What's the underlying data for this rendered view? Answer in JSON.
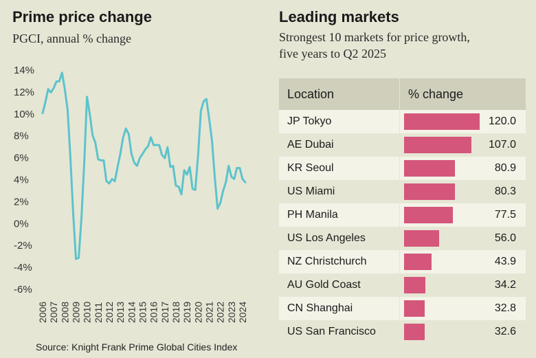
{
  "left_panel": {
    "title": "Prime price change",
    "subtitle": "PGCI, annual % change",
    "source": "Source: Knight Frank Prime Global Cities Index"
  },
  "right_panel": {
    "title": "Leading markets",
    "subtitle_line1": "Strongest 10 markets for price growth,",
    "subtitle_line2": "five years to Q2 2025",
    "header_location": "Location",
    "header_change": "% change",
    "rows": [
      {
        "location": "JP Tokyo",
        "change": "120.0"
      },
      {
        "location": "AE Dubai",
        "change": "107.0"
      },
      {
        "location": "KR Seoul",
        "change": "80.9"
      },
      {
        "location": "US Miami",
        "change": "80.3"
      },
      {
        "location": "PH Manila",
        "change": "77.5"
      },
      {
        "location": "US Los Angeles",
        "change": "56.0"
      },
      {
        "location": "NZ Christchurch",
        "change": "43.9"
      },
      {
        "location": "AU Gold Coast",
        "change": "34.2"
      },
      {
        "location": "CN Shanghai",
        "change": "32.8"
      },
      {
        "location": "US San Francisco",
        "change": "32.6"
      }
    ]
  },
  "colors": {
    "background": "#e6e6d5",
    "line": "#5cc3cb",
    "bar": "#d4567b",
    "grid": "#c9c9b6"
  },
  "chart_data": [
    {
      "type": "line",
      "title": "Prime price change",
      "subtitle": "PGCI, annual % change",
      "xlabel": "",
      "ylabel": "",
      "ylim": [
        -6,
        14
      ],
      "xlim": [
        2006,
        2024.5
      ],
      "yticks": [
        -6,
        -4,
        -2,
        0,
        2,
        4,
        6,
        8,
        10,
        12,
        14
      ],
      "ytick_labels": [
        "-6%",
        "-4%",
        "-2%",
        "0%",
        "2%",
        "4%",
        "6%",
        "8%",
        "10%",
        "12%",
        "14%"
      ],
      "xtick_labels": [
        "2006",
        "2007",
        "2008",
        "2009",
        "2010",
        "2011",
        "2012",
        "2013",
        "2014",
        "2015",
        "2016",
        "2017",
        "2018",
        "2019",
        "2020",
        "2021",
        "2022",
        "2023",
        "2024"
      ],
      "grid": false,
      "series": [
        {
          "name": "PGCI annual % change",
          "x": [
            2006.0,
            2006.25,
            2006.5,
            2006.75,
            2007.0,
            2007.25,
            2007.5,
            2007.75,
            2008.0,
            2008.25,
            2008.5,
            2008.75,
            2009.0,
            2009.25,
            2009.5,
            2009.75,
            2010.0,
            2010.25,
            2010.5,
            2010.75,
            2011.0,
            2011.25,
            2011.5,
            2011.75,
            2012.0,
            2012.25,
            2012.5,
            2012.75,
            2013.0,
            2013.25,
            2013.5,
            2013.75,
            2014.0,
            2014.25,
            2014.5,
            2014.75,
            2015.0,
            2015.25,
            2015.5,
            2015.75,
            2016.0,
            2016.25,
            2016.5,
            2016.75,
            2017.0,
            2017.25,
            2017.5,
            2017.75,
            2018.0,
            2018.25,
            2018.5,
            2018.75,
            2019.0,
            2019.25,
            2019.5,
            2019.75,
            2020.0,
            2020.25,
            2020.5,
            2020.75,
            2021.0,
            2021.25,
            2021.5,
            2021.75,
            2022.0,
            2022.25,
            2022.5,
            2022.75,
            2023.0,
            2023.25,
            2023.5,
            2023.75,
            2024.0,
            2024.25
          ],
          "values": [
            10.0,
            11.0,
            12.2,
            11.9,
            12.3,
            12.9,
            12.9,
            13.7,
            12.2,
            10.3,
            6.0,
            1.0,
            -3.3,
            -3.2,
            0.5,
            5.5,
            11.5,
            9.9,
            8.0,
            7.3,
            5.8,
            5.7,
            5.7,
            3.8,
            3.6,
            4.0,
            3.8,
            5.1,
            6.3,
            7.8,
            8.6,
            8.1,
            6.3,
            5.5,
            5.2,
            5.9,
            6.3,
            6.7,
            7.0,
            7.8,
            7.1,
            7.1,
            7.1,
            6.2,
            5.9,
            6.9,
            5.1,
            5.2,
            3.4,
            3.3,
            2.6,
            4.8,
            4.4,
            5.1,
            3.1,
            3.0,
            6.2,
            10.2,
            11.1,
            11.3,
            9.5,
            7.5,
            4.2,
            1.3,
            1.8,
            2.9,
            3.7,
            5.2,
            4.2,
            4.0,
            5.0,
            5.0,
            4.0,
            3.7
          ]
        }
      ]
    },
    {
      "type": "bar",
      "orientation": "horizontal",
      "title": "Leading markets",
      "subtitle": "Strongest 10 markets for price growth, five years to Q2 2025",
      "categories": [
        "JP Tokyo",
        "AE Dubai",
        "KR Seoul",
        "US Miami",
        "PH Manila",
        "US Los Angeles",
        "NZ Christchurch",
        "AU Gold Coast",
        "CN Shanghai",
        "US San Francisco"
      ],
      "values": [
        120.0,
        107.0,
        80.9,
        80.3,
        77.5,
        56.0,
        43.9,
        34.2,
        32.8,
        32.6
      ],
      "xlim": [
        0,
        120
      ]
    }
  ]
}
